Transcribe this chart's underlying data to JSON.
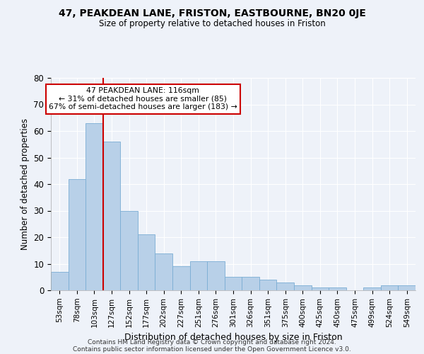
{
  "title": "47, PEAKDEAN LANE, FRISTON, EASTBOURNE, BN20 0JE",
  "subtitle": "Size of property relative to detached houses in Friston",
  "xlabel": "Distribution of detached houses by size in Friston",
  "ylabel": "Number of detached properties",
  "categories": [
    "53sqm",
    "78sqm",
    "103sqm",
    "127sqm",
    "152sqm",
    "177sqm",
    "202sqm",
    "227sqm",
    "251sqm",
    "276sqm",
    "301sqm",
    "326sqm",
    "351sqm",
    "375sqm",
    "400sqm",
    "425sqm",
    "450sqm",
    "475sqm",
    "499sqm",
    "524sqm",
    "549sqm"
  ],
  "values": [
    7,
    42,
    63,
    56,
    30,
    21,
    14,
    9,
    11,
    11,
    5,
    5,
    4,
    3,
    2,
    1,
    1,
    0,
    1,
    2,
    2
  ],
  "bar_color": "#b8d0e8",
  "bar_edge_color": "#7aadd4",
  "vline_x_index": 2.5,
  "vline_color": "#cc0000",
  "annotation_line1": "47 PEAKDEAN LANE: 116sqm",
  "annotation_line2": "← 31% of detached houses are smaller (85)",
  "annotation_line3": "67% of semi-detached houses are larger (183) →",
  "annotation_box_color": "white",
  "annotation_box_edge": "#cc0000",
  "background_color": "#eef2f9",
  "grid_color": "white",
  "yticks": [
    0,
    10,
    20,
    30,
    40,
    50,
    60,
    70,
    80
  ],
  "ylim": [
    0,
    80
  ],
  "footer1": "Contains HM Land Registry data © Crown copyright and database right 2024.",
  "footer2": "Contains public sector information licensed under the Open Government Licence v3.0."
}
